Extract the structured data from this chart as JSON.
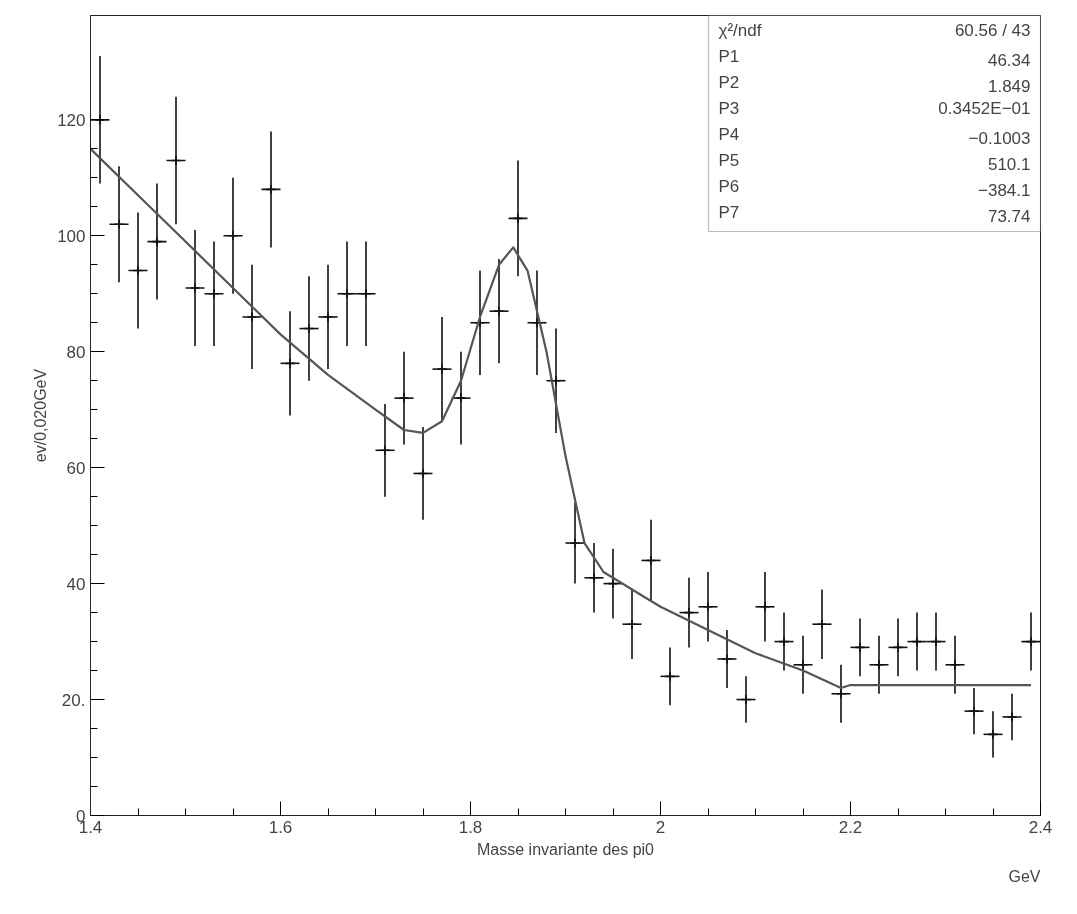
{
  "chart_data": {
    "type": "scatter",
    "xlabel": "Masse invariante des pi0",
    "ylabel": "ev/0,020GeV",
    "annotations": [
      "GeV",
      "χ²/ndf   60.56   /   43",
      "P1   46.34",
      "P2   1.849",
      "P3   0.3452E−01",
      "P4   −0.1003",
      "P5   510.1",
      "P6   −384.1",
      "P7   73.74"
    ],
    "xlim": [
      1.4,
      2.4
    ],
    "xticks": [
      1.4,
      1.6,
      1.8,
      {
        "value": 2.0,
        "label": "2"
      },
      2.2,
      2.4
    ],
    "ylim": [
      0,
      138
    ],
    "yticks": [
      0,
      {
        "value": 20,
        "label": "20."
      },
      40,
      60,
      80,
      100,
      120
    ],
    "grid": false,
    "series": [
      {
        "color": "#111111",
        "marker": "cross",
        "x": [
          1.41,
          1.43,
          1.45,
          1.47,
          1.49,
          1.51,
          1.53,
          1.55,
          1.57,
          1.59,
          1.61,
          1.63,
          1.65,
          1.67,
          1.69,
          1.71,
          1.73,
          1.75,
          1.77,
          1.79,
          1.81,
          1.83,
          1.85,
          1.87,
          1.89,
          1.91,
          1.93,
          1.95,
          1.97,
          1.99,
          2.01,
          2.03,
          2.05,
          2.07,
          2.09,
          2.11,
          2.13,
          2.15,
          2.17,
          2.19,
          2.21,
          2.23,
          2.25,
          2.27,
          2.29,
          2.31,
          2.33,
          2.35,
          2.37,
          2.39
        ],
        "values": [
          120,
          102,
          94,
          99,
          113,
          91,
          90,
          100,
          86,
          108,
          78,
          84,
          86,
          90,
          90,
          63,
          72,
          59,
          77,
          72,
          85,
          87,
          103,
          85,
          75,
          47,
          41,
          40,
          33,
          44,
          24,
          35,
          36,
          27,
          20,
          36,
          30,
          26,
          33,
          21,
          29,
          26,
          29,
          30,
          30,
          26,
          18,
          14,
          17,
          30
        ],
        "errors": [
          11,
          10,
          10,
          10,
          11,
          10,
          9,
          10,
          9,
          10,
          9,
          9,
          9,
          9,
          9,
          8,
          8,
          8,
          9,
          8,
          9,
          9,
          10,
          9,
          9,
          7,
          6,
          6,
          6,
          7,
          5,
          6,
          6,
          5,
          4,
          6,
          5,
          5,
          6,
          5,
          5,
          5,
          5,
          5,
          5,
          5,
          4,
          4,
          4,
          5
        ],
        "xerrors": [
          0.01,
          0.01,
          0.01,
          0.01,
          0.01,
          0.01,
          0.01,
          0.01,
          0.01,
          0.01,
          0.01,
          0.01,
          0.01,
          0.01,
          0.01,
          0.01,
          0.01,
          0.01,
          0.01,
          0.01,
          0.01,
          0.01,
          0.01,
          0.01,
          0.01,
          0.01,
          0.01,
          0.01,
          0.01,
          0.01,
          0.01,
          0.01,
          0.01,
          0.01,
          0.01,
          0.01,
          0.01,
          0.01,
          0.01,
          0.01,
          0.01,
          0.01,
          0.01,
          0.01,
          0.01,
          0.01,
          0.01,
          0.01,
          0.01,
          0.01
        ]
      },
      {
        "type": "line",
        "color": "#555555",
        "marker": "none",
        "x": [
          1.4,
          1.45,
          1.5,
          1.55,
          1.6,
          1.65,
          1.7,
          1.73,
          1.75,
          1.77,
          1.79,
          1.81,
          1.83,
          1.845,
          1.86,
          1.88,
          1.9,
          1.92,
          1.94,
          1.98,
          2.0,
          2.05,
          2.1,
          2.15,
          2.19,
          2.2,
          2.39
        ],
        "values": [
          115,
          107,
          99,
          91,
          83,
          76,
          70,
          66.5,
          66,
          68,
          75,
          86,
          95,
          98,
          94,
          80,
          62,
          47,
          42,
          38,
          36,
          32,
          28,
          25,
          22,
          22.5,
          22.5
        ]
      }
    ]
  }
}
